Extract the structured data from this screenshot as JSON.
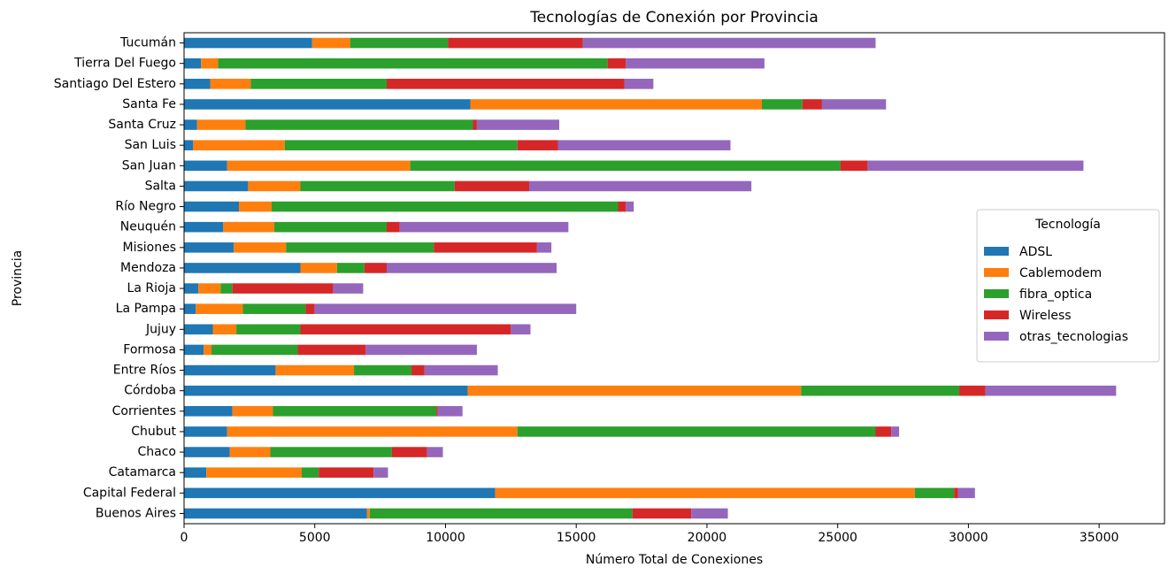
{
  "chart_data": {
    "type": "bar",
    "orientation": "horizontal",
    "stacked": true,
    "title": "Tecnologías de Conexión por Provincia",
    "xlabel": "Número Total de Conexiones",
    "ylabel": "Provincia",
    "xlim": [
      0,
      37500
    ],
    "xticks": [
      0,
      5000,
      10000,
      15000,
      20000,
      25000,
      30000,
      35000
    ],
    "grid": false,
    "legend": {
      "title": "Tecnología",
      "position": "right"
    },
    "categories": [
      "Buenos Aires",
      "Capital Federal",
      "Catamarca",
      "Chaco",
      "Chubut",
      "Corrientes",
      "Córdoba",
      "Entre Ríos",
      "Formosa",
      "Jujuy",
      "La Pampa",
      "La Rioja",
      "Mendoza",
      "Misiones",
      "Neuquén",
      "Río Negro",
      "Salta",
      "San Juan",
      "San Luis",
      "Santa Cruz",
      "Santa Fe",
      "Santiago Del Estero",
      "Tierra Del Fuego",
      "Tucumán"
    ],
    "series": [
      {
        "name": "ADSL",
        "color": "#1f77b4",
        "values": [
          7000,
          11900,
          850,
          1750,
          1650,
          1850,
          10850,
          3500,
          750,
          1100,
          450,
          550,
          4450,
          1900,
          1500,
          2100,
          2450,
          1650,
          350,
          500,
          10950,
          1000,
          650,
          4900
        ]
      },
      {
        "name": "Cablemodem",
        "color": "#ff7f0e",
        "values": [
          100,
          16050,
          3650,
          1550,
          11100,
          1550,
          12750,
          3000,
          300,
          900,
          1800,
          850,
          1400,
          2000,
          1950,
          1250,
          2000,
          7000,
          3500,
          1850,
          11150,
          1550,
          650,
          1450
        ]
      },
      {
        "name": "fibra_optica",
        "color": "#2ca02c",
        "values": [
          10050,
          1500,
          650,
          4650,
          13700,
          6250,
          6050,
          2200,
          3300,
          2450,
          2400,
          450,
          1050,
          5650,
          4300,
          13250,
          5900,
          16450,
          8900,
          8700,
          1550,
          5200,
          14900,
          3750
        ]
      },
      {
        "name": "Wireless",
        "color": "#d62728",
        "values": [
          2250,
          150,
          2100,
          1350,
          600,
          50,
          1000,
          500,
          2600,
          8050,
          350,
          3850,
          850,
          3950,
          500,
          300,
          2850,
          1050,
          1550,
          150,
          750,
          9100,
          700,
          5150
        ]
      },
      {
        "name": "otras_tecnologias",
        "color": "#9467bd",
        "values": [
          1400,
          650,
          550,
          600,
          300,
          950,
          5000,
          2800,
          4250,
          750,
          10000,
          1150,
          6500,
          550,
          6450,
          300,
          8500,
          8250,
          6600,
          3150,
          2450,
          1100,
          5300,
          11200
        ]
      }
    ]
  }
}
